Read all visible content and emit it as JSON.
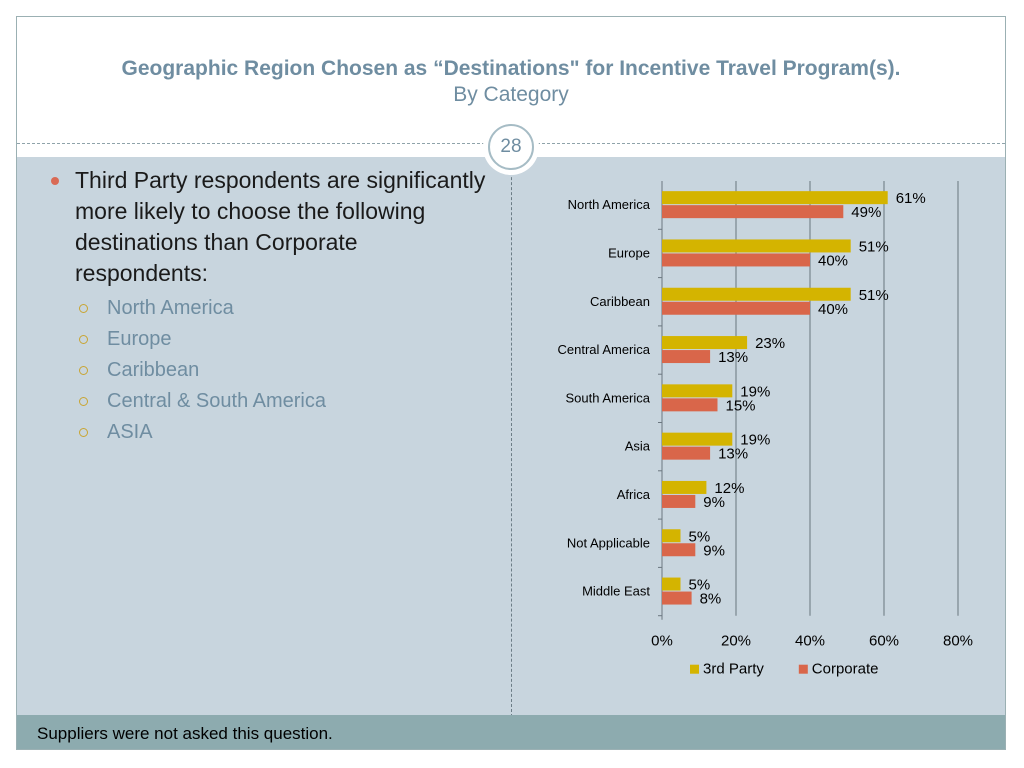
{
  "slide": {
    "title": "Geographic Region Chosen as “Destinations\" for Incentive Travel Program(s).",
    "subtitle": "By Category",
    "page_number": "28",
    "footer": "Suppliers were not asked this question."
  },
  "bullets": {
    "main": "Third Party respondents are significantly more likely to choose the following destinations than Corporate respondents:",
    "items": [
      "North America",
      "Europe",
      "Caribbean",
      "Central & South America",
      "ASIA"
    ]
  },
  "colors": {
    "third_party": "#d4b400",
    "corporate": "#d9664a",
    "gridline": "#7f8c93"
  },
  "chart_data": {
    "type": "bar",
    "orientation": "horizontal",
    "categories": [
      "North America",
      "Europe",
      "Caribbean",
      "Central America",
      "South America",
      "Asia",
      "Africa",
      "Not Applicable",
      "Middle East"
    ],
    "series": [
      {
        "name": "3rd Party",
        "values": [
          61,
          51,
          51,
          23,
          19,
          19,
          12,
          5,
          5
        ],
        "labels": [
          "61%",
          "51%",
          "51%",
          "23%",
          "19%",
          "19%",
          "12%",
          "5%",
          "5%"
        ]
      },
      {
        "name": "Corporate",
        "values": [
          49,
          40,
          40,
          13,
          15,
          13,
          9,
          9,
          8
        ],
        "labels": [
          "49%",
          "40%",
          "40%",
          "13%",
          "15%",
          "13%",
          "9%",
          "9%",
          "8%"
        ]
      }
    ],
    "xlim": [
      0,
      80
    ],
    "x_ticks": [
      0,
      20,
      40,
      60,
      80
    ],
    "x_tick_labels": [
      "0%",
      "20%",
      "40%",
      "60%",
      "80%"
    ],
    "grid": true,
    "legend": "bottom"
  }
}
